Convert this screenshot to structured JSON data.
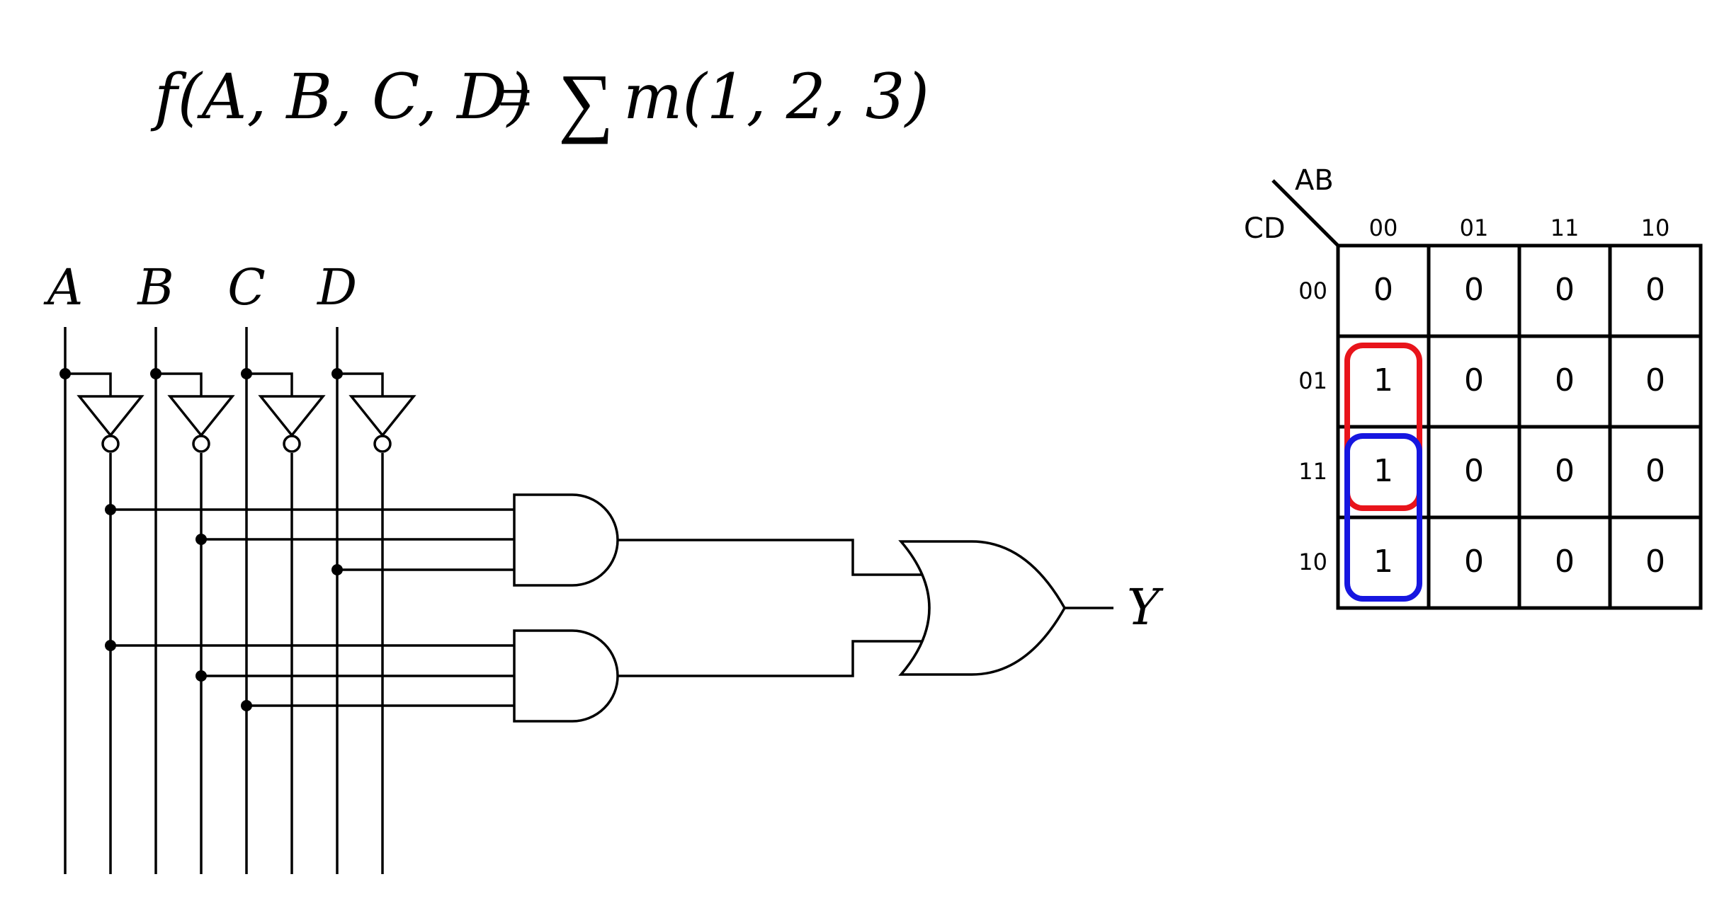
{
  "formula": {
    "lhs": "f(A, B, C, D)",
    "equals": "=",
    "sigma": "∑",
    "rhs": "m(1, 2, 3)"
  },
  "circuit": {
    "inputs": [
      "A",
      "B",
      "C",
      "D"
    ],
    "output": "Y",
    "gates": [
      {
        "type": "NOT",
        "input": "A"
      },
      {
        "type": "NOT",
        "input": "B"
      },
      {
        "type": "NOT",
        "input": "C"
      },
      {
        "type": "NOT",
        "input": "D"
      },
      {
        "type": "AND",
        "inputs": [
          "A'",
          "B'",
          "D"
        ]
      },
      {
        "type": "AND",
        "inputs": [
          "A'",
          "B'",
          "C"
        ]
      },
      {
        "type": "OR",
        "inputs": [
          "AND1",
          "AND2"
        ],
        "output": "Y"
      }
    ]
  },
  "kmap": {
    "col_var": "AB",
    "row_var": "CD",
    "col_labels": [
      "00",
      "01",
      "11",
      "10"
    ],
    "row_labels": [
      "00",
      "01",
      "11",
      "10"
    ],
    "cells": [
      [
        "0",
        "0",
        "0",
        "0"
      ],
      [
        "1",
        "0",
        "0",
        "0"
      ],
      [
        "1",
        "0",
        "0",
        "0"
      ],
      [
        "1",
        "0",
        "0",
        "0"
      ]
    ],
    "groups": [
      {
        "color": "#e8141b",
        "col": 0,
        "row_start": 1,
        "row_end": 2
      },
      {
        "color": "#1616e0",
        "col": 0,
        "row_start": 2,
        "row_end": 3
      }
    ]
  }
}
